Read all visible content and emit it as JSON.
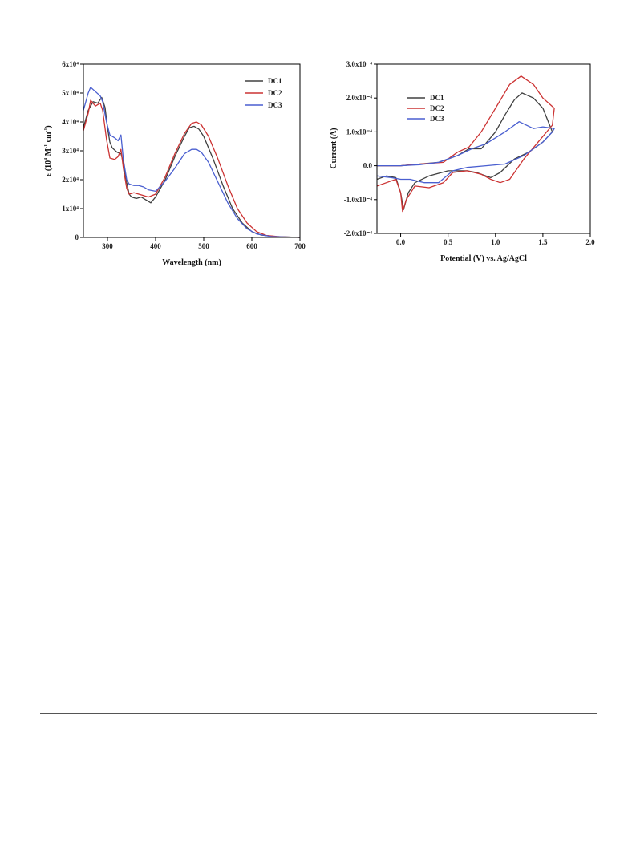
{
  "chart_data": [
    {
      "type": "line",
      "title": "",
      "xlabel": "Wavelength (nm)",
      "ylabel": "ε (10⁴ M⁻¹ cm⁻¹)",
      "ylabel_parts": [
        "ε",
        " (10",
        "4",
        " M",
        "-1",
        " cm",
        "-1",
        ")"
      ],
      "xlim": [
        250,
        700
      ],
      "ylim": [
        0,
        60000
      ],
      "xticks": [
        300,
        400,
        500,
        600,
        700
      ],
      "xtick_labels": [
        "300",
        "400",
        "500",
        "600",
        "700"
      ],
      "yticks": [
        0,
        10000,
        20000,
        30000,
        40000,
        50000,
        60000
      ],
      "ytick_labels": [
        "0",
        "1x10⁴",
        "2x10⁴",
        "3x10⁴",
        "4x10⁴",
        "5x10⁴",
        "6x10⁴"
      ],
      "legend_position": "top-right",
      "series": [
        {
          "name": "DC1",
          "color": "#404040",
          "points": [
            [
              250,
              38000
            ],
            [
              260,
              44000
            ],
            [
              270,
              47000
            ],
            [
              280,
              46500
            ],
            [
              288,
              48500
            ],
            [
              295,
              45000
            ],
            [
              300,
              38000
            ],
            [
              305,
              33000
            ],
            [
              310,
              31000
            ],
            [
              320,
              29500
            ],
            [
              328,
              29000
            ],
            [
              333,
              26000
            ],
            [
              340,
              19000
            ],
            [
              345,
              15000
            ],
            [
              350,
              14000
            ],
            [
              360,
              13500
            ],
            [
              370,
              14000
            ],
            [
              380,
              13000
            ],
            [
              390,
              12000
            ],
            [
              400,
              14000
            ],
            [
              420,
              20000
            ],
            [
              440,
              28000
            ],
            [
              460,
              35000
            ],
            [
              470,
              38000
            ],
            [
              480,
              38500
            ],
            [
              490,
              37500
            ],
            [
              500,
              35000
            ],
            [
              520,
              27000
            ],
            [
              540,
              18000
            ],
            [
              560,
              10000
            ],
            [
              580,
              5000
            ],
            [
              600,
              2000
            ],
            [
              620,
              800
            ],
            [
              650,
              300
            ],
            [
              700,
              0
            ]
          ]
        },
        {
          "name": "DC2",
          "color": "#cc3333",
          "points": [
            [
              250,
              37000
            ],
            [
              260,
              43000
            ],
            [
              265,
              47500
            ],
            [
              275,
              45500
            ],
            [
              285,
              46500
            ],
            [
              290,
              44000
            ],
            [
              298,
              34000
            ],
            [
              305,
              27500
            ],
            [
              315,
              27000
            ],
            [
              322,
              28000
            ],
            [
              328,
              30500
            ],
            [
              333,
              24000
            ],
            [
              340,
              17000
            ],
            [
              345,
              15000
            ],
            [
              355,
              15500
            ],
            [
              365,
              15000
            ],
            [
              375,
              14500
            ],
            [
              385,
              14000
            ],
            [
              400,
              15000
            ],
            [
              420,
              21000
            ],
            [
              440,
              29000
            ],
            [
              460,
              36000
            ],
            [
              475,
              39500
            ],
            [
              485,
              40000
            ],
            [
              495,
              39000
            ],
            [
              510,
              35000
            ],
            [
              530,
              27000
            ],
            [
              550,
              18000
            ],
            [
              570,
              10000
            ],
            [
              590,
              5000
            ],
            [
              610,
              2000
            ],
            [
              630,
              700
            ],
            [
              660,
              200
            ],
            [
              700,
              0
            ]
          ]
        },
        {
          "name": "DC3",
          "color": "#4a5fd0",
          "points": [
            [
              250,
              44000
            ],
            [
              260,
              50000
            ],
            [
              265,
              52000
            ],
            [
              275,
              50500
            ],
            [
              285,
              49000
            ],
            [
              290,
              47000
            ],
            [
              298,
              40000
            ],
            [
              305,
              35500
            ],
            [
              315,
              34500
            ],
            [
              322,
              33500
            ],
            [
              328,
              35500
            ],
            [
              333,
              27000
            ],
            [
              340,
              20000
            ],
            [
              345,
              18500
            ],
            [
              355,
              18000
            ],
            [
              365,
              18000
            ],
            [
              375,
              17500
            ],
            [
              385,
              16500
            ],
            [
              400,
              16000
            ],
            [
              420,
              19500
            ],
            [
              440,
              24000
            ],
            [
              460,
              29000
            ],
            [
              475,
              30500
            ],
            [
              485,
              30500
            ],
            [
              495,
              29500
            ],
            [
              510,
              26000
            ],
            [
              530,
              19000
            ],
            [
              550,
              12000
            ],
            [
              570,
              6500
            ],
            [
              590,
              3000
            ],
            [
              610,
              1200
            ],
            [
              640,
              300
            ],
            [
              700,
              0
            ]
          ]
        }
      ]
    },
    {
      "type": "line",
      "title": "",
      "xlabel": "Potential (V) vs. Ag/AgCl",
      "ylabel": "Current (A)",
      "xlim": [
        -0.25,
        2.0
      ],
      "ylim": [
        -0.0002,
        0.0003
      ],
      "xticks": [
        0.0,
        0.5,
        1.0,
        1.5,
        2.0
      ],
      "xtick_labels": [
        "0.0",
        "0.5",
        "1.0",
        "1.5",
        "2.0"
      ],
      "yticks": [
        -0.0002,
        -0.0001,
        0.0,
        0.0001,
        0.0002,
        0.0003
      ],
      "ytick_labels": [
        "-2.0x10⁻⁴",
        "-1.0x10⁻⁴",
        "0.0",
        "1.0x10⁻⁴",
        "2.0x10⁻⁴",
        "3.0x10⁻⁴"
      ],
      "legend_position": "top-left",
      "series": [
        {
          "name": "DC1",
          "color": "#404040",
          "points": [
            [
              -0.25,
              -4e-05
            ],
            [
              -0.15,
              -3e-05
            ],
            [
              -0.05,
              -3.5e-05
            ],
            [
              0.0,
              -8e-05
            ],
            [
              0.03,
              -0.00013
            ],
            [
              0.08,
              -8e-05
            ],
            [
              0.15,
              -5e-05
            ],
            [
              0.3,
              -3e-05
            ],
            [
              0.5,
              -1.5e-05
            ],
            [
              0.6,
              -1.5e-05
            ],
            [
              0.7,
              -1.5e-05
            ],
            [
              0.8,
              -2e-05
            ],
            [
              0.9,
              -3e-05
            ],
            [
              0.95,
              -3.5e-05
            ],
            [
              1.05,
              -2e-05
            ],
            [
              1.2,
              2e-05
            ],
            [
              1.35,
              4e-05
            ],
            [
              1.5,
              7e-05
            ],
            [
              1.6,
              0.0001
            ],
            [
              1.5,
              0.00017
            ],
            [
              1.4,
              0.0002
            ],
            [
              1.28,
              0.000215
            ],
            [
              1.2,
              0.000195
            ],
            [
              1.1,
              0.00015
            ],
            [
              1.0,
              0.0001
            ],
            [
              0.85,
              5e-05
            ],
            [
              0.72,
              5e-05
            ],
            [
              0.6,
              3e-05
            ],
            [
              0.4,
              1e-05
            ],
            [
              0.2,
              5e-06
            ],
            [
              0.0,
              0.0
            ],
            [
              -0.25,
              0.0
            ]
          ]
        },
        {
          "name": "DC2",
          "color": "#cc3333",
          "points": [
            [
              -0.25,
              -6e-05
            ],
            [
              -0.15,
              -5e-05
            ],
            [
              -0.05,
              -4e-05
            ],
            [
              0.0,
              -8e-05
            ],
            [
              0.02,
              -0.000135
            ],
            [
              0.06,
              -0.0001
            ],
            [
              0.15,
              -6e-05
            ],
            [
              0.3,
              -6.5e-05
            ],
            [
              0.45,
              -5e-05
            ],
            [
              0.55,
              -2e-05
            ],
            [
              0.7,
              -1.5e-05
            ],
            [
              0.85,
              -2.5e-05
            ],
            [
              0.95,
              -4e-05
            ],
            [
              1.05,
              -5e-05
            ],
            [
              1.15,
              -4e-05
            ],
            [
              1.3,
              2e-05
            ],
            [
              1.45,
              7e-05
            ],
            [
              1.6,
              0.00012
            ],
            [
              1.62,
              0.00017
            ],
            [
              1.5,
              0.0002
            ],
            [
              1.4,
              0.00024
            ],
            [
              1.27,
              0.000265
            ],
            [
              1.15,
              0.00024
            ],
            [
              1.0,
              0.00017
            ],
            [
              0.85,
              0.0001
            ],
            [
              0.72,
              5.5e-05
            ],
            [
              0.6,
              4e-05
            ],
            [
              0.45,
              1e-05
            ],
            [
              0.2,
              5e-06
            ],
            [
              0.0,
              0.0
            ],
            [
              -0.25,
              0.0
            ]
          ]
        },
        {
          "name": "DC3",
          "color": "#4a5fd0",
          "points": [
            [
              -0.25,
              -3e-05
            ],
            [
              -0.1,
              -3.5e-05
            ],
            [
              0.0,
              -4e-05
            ],
            [
              0.1,
              -4e-05
            ],
            [
              0.25,
              -5e-05
            ],
            [
              0.4,
              -5e-05
            ],
            [
              0.55,
              -1.5e-05
            ],
            [
              0.7,
              -5e-06
            ],
            [
              0.9,
              0.0
            ],
            [
              1.1,
              5e-06
            ],
            [
              1.3,
              3e-05
            ],
            [
              1.5,
              7e-05
            ],
            [
              1.6,
              0.0001
            ],
            [
              1.62,
              0.00011
            ],
            [
              1.5,
              0.000115
            ],
            [
              1.4,
              0.00011
            ],
            [
              1.25,
              0.00013
            ],
            [
              1.1,
              0.0001
            ],
            [
              0.9,
              6.5e-05
            ],
            [
              0.75,
              5e-05
            ],
            [
              0.6,
              3e-05
            ],
            [
              0.4,
              1e-05
            ],
            [
              0.2,
              3e-06
            ],
            [
              0.0,
              0.0
            ],
            [
              -0.25,
              0.0
            ]
          ]
        }
      ]
    }
  ]
}
